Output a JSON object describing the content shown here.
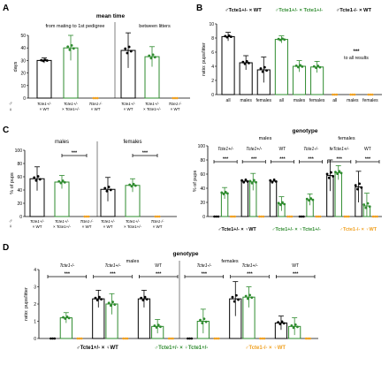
{
  "colors": {
    "black": "#000000",
    "green": "#2e8b2e",
    "orange": "#f0a020"
  },
  "chart_data": [
    {
      "panel": "A",
      "type": "bar",
      "title": "mean time",
      "ylabel": "days",
      "ylim": [
        0,
        50
      ],
      "yticks": [
        0,
        10,
        20,
        30,
        40,
        50
      ],
      "groups": [
        {
          "label": "from mating to 1st pedigree",
          "categories": [
            {
              "m": "Tcte1+/-",
              "f": "× WT",
              "color": "black",
              "value": 30,
              "err": 2,
              "points": [
                29,
                30,
                31
              ]
            },
            {
              "m": "Tcte1+/-",
              "f": "× Tcte1+/-",
              "color": "green",
              "value": 40,
              "err": 10,
              "points": [
                29,
                40,
                46,
                47
              ]
            },
            {
              "m": "Tcte1-/-",
              "f": "× WT",
              "color": "orange",
              "value": 0,
              "err": 0,
              "points": [
                0,
                0,
                0
              ]
            }
          ]
        },
        {
          "label": "between litters",
          "categories": [
            {
              "m": "Tcte1+/-",
              "f": "× WT",
              "color": "black",
              "value": 38,
              "err": 14,
              "points": [
                38
              ]
            },
            {
              "m": "Tcte1+/-",
              "f": "× Tcte1+/-",
              "color": "green",
              "value": 33,
              "err": 8,
              "points": [
                28,
                33,
                35,
                43
              ]
            },
            {
              "m": "Tcte1-/-",
              "f": "× WT",
              "color": "orange",
              "value": 0,
              "err": 0,
              "points": [
                0,
                0,
                0
              ]
            }
          ]
        }
      ]
    },
    {
      "panel": "B",
      "type": "bar",
      "ylabel": "ratio: pups/litter",
      "ylim": [
        0,
        10
      ],
      "yticks": [
        0,
        2,
        4,
        6,
        8,
        10
      ],
      "legend": [
        "Tcte1+/- × WT",
        "Tcte1+/- × Tcte1+/-",
        "Tcte1-/- × WT"
      ],
      "categories": [
        "all",
        "males",
        "females",
        "all",
        "males",
        "females",
        "all",
        "males",
        "females"
      ],
      "values": [
        8.2,
        4.5,
        3.5,
        7.8,
        4,
        3.9,
        0,
        0,
        0
      ],
      "errors": [
        0.6,
        1,
        1.8,
        0.5,
        0.8,
        0.8,
        0,
        0,
        0
      ],
      "colors": [
        "black",
        "black",
        "black",
        "green",
        "green",
        "green",
        "orange",
        "orange",
        "orange"
      ],
      "annotation": "*** to all results"
    },
    {
      "panel": "C",
      "type": "bar",
      "ylabel": "% of pups",
      "ylim": [
        0,
        100
      ],
      "yticks": [
        0,
        20,
        40,
        60,
        80,
        100
      ],
      "groups": [
        {
          "label": "males",
          "values": [
            57,
            52,
            0
          ],
          "errors": [
            18,
            10,
            0
          ]
        },
        {
          "label": "females",
          "values": [
            41,
            47,
            0
          ],
          "errors": [
            18,
            10,
            0
          ]
        }
      ],
      "x_m": [
        "Tcte1+/-",
        "Tcte1+/-",
        "Tcte1-/-"
      ],
      "x_f": [
        "× WT",
        "× Tcte1+/-",
        "× WT"
      ],
      "colors": [
        "black",
        "green",
        "orange"
      ]
    },
    {
      "panel": "C2",
      "type": "bar",
      "title": "genotype",
      "ylabel": "% of pups",
      "ylim": [
        0,
        100
      ],
      "yticks": [
        0,
        20,
        40,
        60,
        80,
        100
      ],
      "groups": [
        {
          "label": "Tcte1+/-",
          "values": [
            0,
            33,
            0
          ],
          "errors": [
            0,
            8,
            0
          ]
        },
        {
          "label": "males Tcte1+/-",
          "values": [
            50,
            49,
            0
          ],
          "errors": [
            0,
            12,
            0
          ]
        },
        {
          "label": "WT",
          "values": [
            50,
            18,
            0
          ],
          "errors": [
            0,
            10,
            0
          ]
        },
        {
          "label": "Tcte1-/-",
          "values": [
            0,
            24,
            0
          ],
          "errors": [
            0,
            8,
            0
          ]
        },
        {
          "label": "females Tcte1+/-",
          "values": [
            58,
            62,
            0
          ],
          "errors": [
            22,
            10,
            0
          ]
        },
        {
          "label": "WT",
          "values": [
            42,
            15,
            0
          ],
          "errors": [
            22,
            18,
            0
          ]
        }
      ],
      "colors": [
        "black",
        "green",
        "orange"
      ]
    },
    {
      "panel": "D",
      "type": "bar",
      "title": "genotype",
      "ylabel": "ratio: pups/litter",
      "ylim": [
        0,
        4
      ],
      "yticks": [
        0,
        1,
        2,
        3,
        4
      ],
      "groups": [
        {
          "label": "Tcte1-/-",
          "values": [
            0,
            1.2,
            0
          ],
          "errors": [
            0,
            0.3,
            0
          ]
        },
        {
          "label": "Tcte1+/-",
          "values": [
            2.3,
            2,
            0
          ],
          "errors": [
            0.5,
            0.6,
            0
          ]
        },
        {
          "label": "WT",
          "values": [
            2.3,
            0.7,
            0
          ],
          "errors": [
            0.5,
            0.4,
            0
          ]
        },
        {
          "label": "Tcte1-/-",
          "values": [
            0,
            1,
            0
          ],
          "errors": [
            0,
            0.7,
            0
          ]
        },
        {
          "label": "Tcte1+/-",
          "values": [
            2.3,
            2.4,
            0
          ],
          "errors": [
            1,
            0.6,
            0
          ]
        },
        {
          "label": "WT",
          "values": [
            0.9,
            0.7,
            0
          ],
          "errors": [
            0.4,
            0.5,
            0
          ]
        }
      ],
      "section_labels": [
        "males",
        "females"
      ],
      "legend": [
        "Tcte1+/- × WT",
        "Tcte1+/- × Tcte1+/-",
        "Tcte1-/- × WT"
      ],
      "colors": [
        "black",
        "green",
        "orange"
      ]
    }
  ],
  "panel_letters": [
    "A",
    "B",
    "C",
    "D"
  ],
  "sig": "***",
  "sig2": "**",
  "legend_male": "♂",
  "legend_female": "♀"
}
